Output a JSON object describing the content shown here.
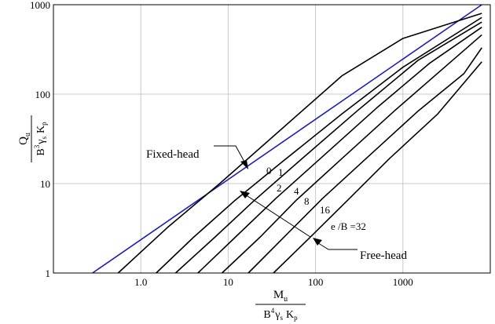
{
  "chart_data": {
    "type": "line",
    "xscale": "log",
    "yscale": "log",
    "xlim": [
      0.1,
      10000
    ],
    "ylim": [
      1,
      1000
    ],
    "grid": true,
    "x_ticks": [
      {
        "value": 1,
        "label": "1.0"
      },
      {
        "value": 10,
        "label": "10"
      },
      {
        "value": 100,
        "label": "100"
      },
      {
        "value": 1000,
        "label": "1000"
      }
    ],
    "y_ticks": [
      {
        "value": 1,
        "label": "1"
      },
      {
        "value": 10,
        "label": "10"
      },
      {
        "value": 100,
        "label": "100"
      },
      {
        "value": 1000,
        "label": "1000"
      }
    ],
    "ylabel": {
      "num_main": "Q",
      "num_sub": "u",
      "den_b": "B",
      "den_b_sup": "3",
      "den_gamma": "γ",
      "den_gamma_sub": "s",
      "den_k": "K",
      "den_k_sub": "p"
    },
    "xlabel": {
      "num_main": "M",
      "num_sub": "u",
      "den_b": "B",
      "den_b_sup": "4",
      "den_gamma": "γ",
      "den_gamma_sub": "s",
      "den_k": "K",
      "den_k_sub": "p"
    },
    "series": [
      {
        "label": "",
        "color": "#1f1fb4",
        "points": [
          [
            0.28,
            1
          ],
          [
            8000,
            1000
          ]
        ]
      },
      {
        "label": "0",
        "color": "#000000",
        "points": [
          [
            0.55,
            1
          ],
          [
            2,
            3.2
          ],
          [
            8,
            10
          ],
          [
            40,
            40
          ],
          [
            200,
            160
          ],
          [
            1000,
            420
          ],
          [
            8000,
            800
          ]
        ]
      },
      {
        "label": "1",
        "color": "#000000",
        "points": [
          [
            1.5,
            1
          ],
          [
            4,
            2.5
          ],
          [
            12,
            6.5
          ],
          [
            40,
            17
          ],
          [
            200,
            60
          ],
          [
            1000,
            200
          ],
          [
            8000,
            720
          ]
        ]
      },
      {
        "label": "2",
        "color": "#000000",
        "points": [
          [
            2.5,
            1
          ],
          [
            7,
            2.5
          ],
          [
            20,
            6.5
          ],
          [
            70,
            19
          ],
          [
            300,
            65
          ],
          [
            1500,
            240
          ],
          [
            8000,
            640
          ]
        ]
      },
      {
        "label": "4",
        "color": "#000000",
        "points": [
          [
            4.5,
            1
          ],
          [
            12,
            2.5
          ],
          [
            35,
            6.8
          ],
          [
            120,
            20
          ],
          [
            500,
            70
          ],
          [
            2000,
            220
          ],
          [
            8000,
            560
          ]
        ]
      },
      {
        "label": "8",
        "color": "#000000",
        "points": [
          [
            8.5,
            1
          ],
          [
            23,
            2.5
          ],
          [
            60,
            6.5
          ],
          [
            200,
            19
          ],
          [
            800,
            65
          ],
          [
            3000,
            200
          ],
          [
            8000,
            460
          ]
        ]
      },
      {
        "label": "16",
        "color": "#000000",
        "points": [
          [
            17,
            1
          ],
          [
            45,
            2.6
          ],
          [
            120,
            6.8
          ],
          [
            400,
            20
          ],
          [
            1500,
            65
          ],
          [
            5000,
            170
          ],
          [
            8000,
            330
          ]
        ]
      },
      {
        "label": "e /B =32",
        "color": "#000000",
        "points": [
          [
            33,
            1
          ],
          [
            90,
            2.6
          ],
          [
            240,
            6.7
          ],
          [
            700,
            19
          ],
          [
            2500,
            60
          ],
          [
            8000,
            230
          ]
        ]
      }
    ],
    "annotations": [
      {
        "text": "Fixed-head"
      },
      {
        "text": "Free-head"
      }
    ]
  }
}
